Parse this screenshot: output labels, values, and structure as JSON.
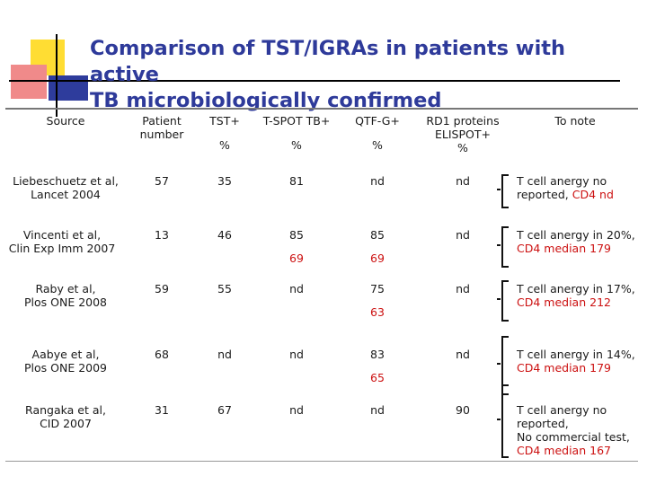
{
  "title": {
    "line1": "Comparison of TST/IGRAs in patients with active",
    "line2": "TB microbiologically confirmed"
  },
  "headers": {
    "source": "Source",
    "patient": {
      "l1": "Patient",
      "l2": "number"
    },
    "tst": "TST+",
    "tspot": "T-SPOT TB+",
    "qtf": "QTF-G+",
    "rd1": {
      "l1": "RD1 proteins",
      "l2": "ELISPOT+",
      "l3": "%"
    },
    "note": "To note",
    "pct_tst": "%",
    "pct_tspot": "%",
    "pct_qtf": "%"
  },
  "rows": [
    {
      "src1": "Liebeschuetz et al,",
      "src2": "Lancet 2004",
      "n": "57",
      "tst": "35",
      "tspot": "81",
      "qtf": "nd",
      "rd1": "nd",
      "note1a": "T cell anergy no",
      "note2a": "reported, ",
      "note2b": "CD4 nd"
    },
    {
      "src1": "Vincenti et al,",
      "src2": "Clin Exp Imm 2007",
      "n": "13",
      "tst": "46",
      "tspot": "85",
      "tspot2": "69",
      "qtf": "85",
      "qtf2": "69",
      "rd1": "nd",
      "note1": "T cell anergy in 20%,",
      "note2": "CD4 median 179"
    },
    {
      "src1": "Raby et al,",
      "src2": "Plos ONE 2008",
      "n": "59",
      "tst": "55",
      "tspot": "nd",
      "qtf": "75",
      "qtf2": "63",
      "rd1": "nd",
      "note1": "T cell anergy in 17%,",
      "note2": "CD4 median 212"
    },
    {
      "src1": "Aabye et al,",
      "src2": "Plos ONE 2009",
      "n": "68",
      "tst": "nd",
      "tspot": "nd",
      "qtf": "83",
      "qtf2": "65",
      "rd1": "nd",
      "note1": "T cell anergy in 14%,",
      "note2": "CD4 median 179"
    },
    {
      "src1": "Rangaka et al,",
      "src2": "CID 2007",
      "n": "31",
      "tst": "67",
      "tspot": "nd",
      "qtf": "nd",
      "rd1": "90",
      "note1": "T cell anergy no",
      "note2": "reported,",
      "note3": "No commercial test,",
      "note4": "CD4 median 167"
    }
  ]
}
